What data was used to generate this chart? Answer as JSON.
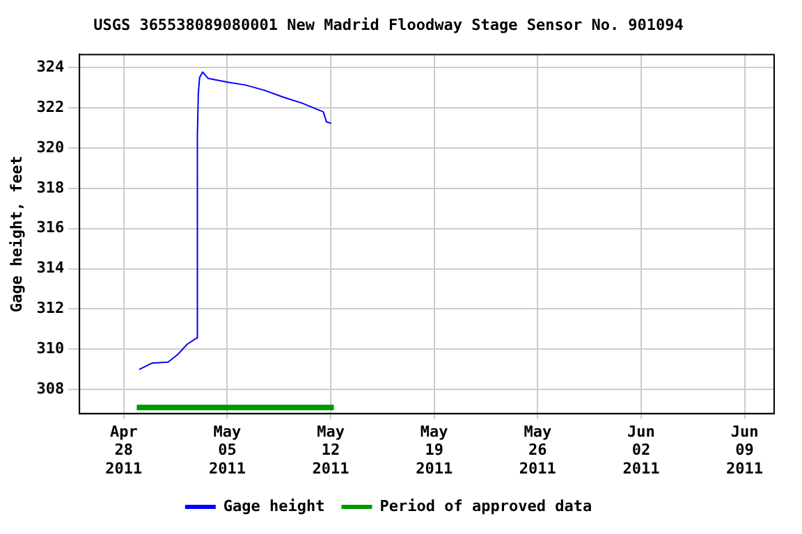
{
  "chart_data": {
    "type": "line",
    "title": "USGS 365538089080001 New Madrid Floodway Stage Sensor No. 901094",
    "ylabel": "Gage height, feet",
    "x": [
      "2011-04-29T01:00",
      "2011-04-29T22:00",
      "2011-05-01T00:00",
      "2011-05-01T16:00",
      "2011-05-02T07:00",
      "2011-05-02T22:00",
      "2011-05-02T23:30",
      "2011-05-03T01:00",
      "2011-05-03T03:00",
      "2011-05-03T08:00",
      "2011-05-03T17:00",
      "2011-05-04T23:30",
      "2011-05-06T06:00",
      "2011-05-07T12:30",
      "2011-05-08T19:00",
      "2011-05-10T01:30",
      "2011-05-11T12:00",
      "2011-05-11T17:00",
      "2011-05-12T01:00"
    ],
    "series": [
      {
        "name": "Gage height",
        "color": "#0000ff",
        "values": [
          308.99,
          309.31,
          309.36,
          309.75,
          310.25,
          310.55,
          320.65,
          322.7,
          323.5,
          323.78,
          323.46,
          323.28,
          323.13,
          322.87,
          322.53,
          322.23,
          321.8,
          321.3,
          321.23
        ]
      },
      {
        "name": "Period of approved data",
        "color": "#009900",
        "x": [
          "2011-04-28T21:00",
          "2011-05-12T05:00"
        ],
        "values": [
          307.1,
          307.1
        ]
      }
    ],
    "xlim": [
      "2011-04-25",
      "2011-06-11"
    ],
    "xticks": [
      {
        "value": "2011-04-28",
        "label": "Apr 28 2011"
      },
      {
        "value": "2011-05-05",
        "label": "May 05 2011"
      },
      {
        "value": "2011-05-12",
        "label": "May 12 2011"
      },
      {
        "value": "2011-05-19",
        "label": "May 19 2011"
      },
      {
        "value": "2011-05-26",
        "label": "May 26 2011"
      },
      {
        "value": "2011-06-02",
        "label": "Jun 02 2011"
      },
      {
        "value": "2011-06-09",
        "label": "Jun 09 2011"
      }
    ],
    "ylim": [
      306.8,
      324.65
    ],
    "yticks": [
      308,
      310,
      312,
      314,
      316,
      318,
      320,
      322,
      324
    ],
    "grid": true,
    "legend": "bottom",
    "marker": "none",
    "line_style": "solid"
  }
}
